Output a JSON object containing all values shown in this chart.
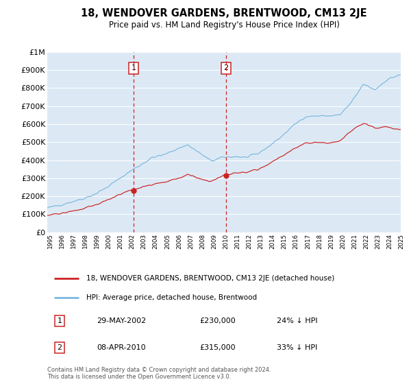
{
  "title": "18, WENDOVER GARDENS, BRENTWOOD, CM13 2JE",
  "subtitle": "Price paid vs. HM Land Registry's House Price Index (HPI)",
  "bg_color": "#dce9f5",
  "sale1_date": "29-MAY-2002",
  "sale1_price": 230000,
  "sale1_label": "24% ↓ HPI",
  "sale1_t": 2002.37,
  "sale2_date": "08-APR-2010",
  "sale2_price": 315000,
  "sale2_label": "33% ↓ HPI",
  "sale2_t": 2010.27,
  "legend_house": "18, WENDOVER GARDENS, BRENTWOOD, CM13 2JE (detached house)",
  "legend_hpi": "HPI: Average price, detached house, Brentwood",
  "footer": "Contains HM Land Registry data © Crown copyright and database right 2024.\nThis data is licensed under the Open Government Licence v3.0.",
  "hpi_color": "#7ab8de",
  "price_color": "#cc2222",
  "vline_color": "#cc2222",
  "ylim_max": 1000000,
  "ylim_min": 0,
  "xmin": 1995,
  "xmax": 2025.2,
  "years": [
    1995,
    1996,
    1997,
    1998,
    1999,
    2000,
    2001,
    2002,
    2003,
    2004,
    2005,
    2006,
    2007,
    2008,
    2009,
    2010,
    2011,
    2012,
    2013,
    2014,
    2015,
    2016,
    2017,
    2018,
    2019,
    2020,
    2021,
    2022,
    2023,
    2024,
    2025
  ],
  "hpi_base": [
    135000,
    150000,
    168000,
    185000,
    210000,
    245000,
    290000,
    335000,
    375000,
    415000,
    430000,
    460000,
    485000,
    440000,
    395000,
    415000,
    420000,
    415000,
    435000,
    480000,
    530000,
    590000,
    640000,
    645000,
    645000,
    650000,
    720000,
    820000,
    790000,
    845000,
    870000
  ],
  "price_base": [
    95000,
    103000,
    115000,
    128000,
    150000,
    175000,
    205000,
    230000,
    248000,
    268000,
    278000,
    295000,
    320000,
    298000,
    278000,
    315000,
    328000,
    333000,
    348000,
    382000,
    418000,
    460000,
    495000,
    498000,
    496000,
    505000,
    565000,
    605000,
    578000,
    583000,
    570000
  ]
}
